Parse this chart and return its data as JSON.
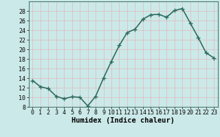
{
  "x": [
    0,
    1,
    2,
    3,
    4,
    5,
    6,
    7,
    8,
    9,
    10,
    11,
    12,
    13,
    14,
    15,
    16,
    17,
    18,
    19,
    20,
    21,
    22,
    23
  ],
  "y": [
    13.5,
    12.2,
    11.8,
    10.2,
    9.7,
    10.1,
    10.0,
    8.2,
    10.2,
    14.0,
    17.5,
    20.8,
    23.5,
    24.2,
    26.3,
    27.2,
    27.3,
    26.7,
    28.1,
    28.5,
    25.5,
    22.5,
    19.3,
    18.2
  ],
  "line_color": "#2e6b5e",
  "marker": "D",
  "marker_size": 2.0,
  "bg_color": "#cce9e9",
  "grid_color": "#e0b8b8",
  "xlabel": "Humidex (Indice chaleur)",
  "xlim": [
    -0.5,
    23.5
  ],
  "ylim": [
    8,
    30
  ],
  "yticks": [
    8,
    10,
    12,
    14,
    16,
    18,
    20,
    22,
    24,
    26,
    28
  ],
  "xticks": [
    0,
    1,
    2,
    3,
    4,
    5,
    6,
    7,
    8,
    9,
    10,
    11,
    12,
    13,
    14,
    15,
    16,
    17,
    18,
    19,
    20,
    21,
    22,
    23
  ],
  "xlabel_fontsize": 7.5,
  "tick_fontsize": 6.0,
  "linewidth": 1.2
}
